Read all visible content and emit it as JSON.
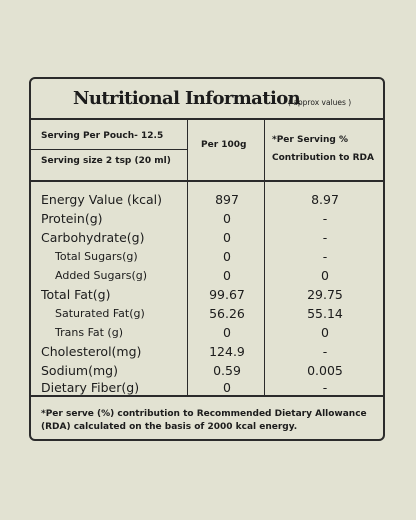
{
  "title": "Nutritional Information",
  "title_note": "( approx values )",
  "header": {
    "serving_per_pouch": "Serving Per Pouch- 12.5",
    "serving_size": "Serving size 2 tsp (20 ml)",
    "col_per100": "Per 100g",
    "col_rda_line1": "*Per Serving %",
    "col_rda_line2": "Contribution to RDA"
  },
  "rows": [
    {
      "label": "Energy Value (kcal)",
      "per100": "897",
      "rda": "8.97"
    },
    {
      "label": "Protein(g)",
      "per100": "0",
      "rda": "-"
    },
    {
      "label": "Carbohydrate(g)",
      "per100": "0",
      "rda": "-"
    },
    {
      "label": "Total Sugars(g)",
      "per100": "0",
      "rda": "-"
    },
    {
      "label": "Added Sugars(g)",
      "per100": "0",
      "rda": "0"
    },
    {
      "label": "Total Fat(g)",
      "per100": "99.67",
      "rda": "29.75"
    },
    {
      "label": "Saturated Fat(g)",
      "per100": "56.26",
      "rda": "55.14"
    },
    {
      "label": "Trans Fat (g)",
      "per100": "0",
      "rda": "0"
    },
    {
      "label": "Cholesterol(mg)",
      "per100": "124.9",
      "rda": "-"
    },
    {
      "label": "Sodium(mg)",
      "per100": "0.59",
      "rda": "0.005"
    },
    {
      "label": "Dietary Fiber(g)",
      "per100": "0",
      "rda": "-"
    }
  ],
  "footnote": "*Per serve (%) contribution to Recommended Dietary Allowance (RDA) calculated on the basis of 2000 kcal energy."
}
